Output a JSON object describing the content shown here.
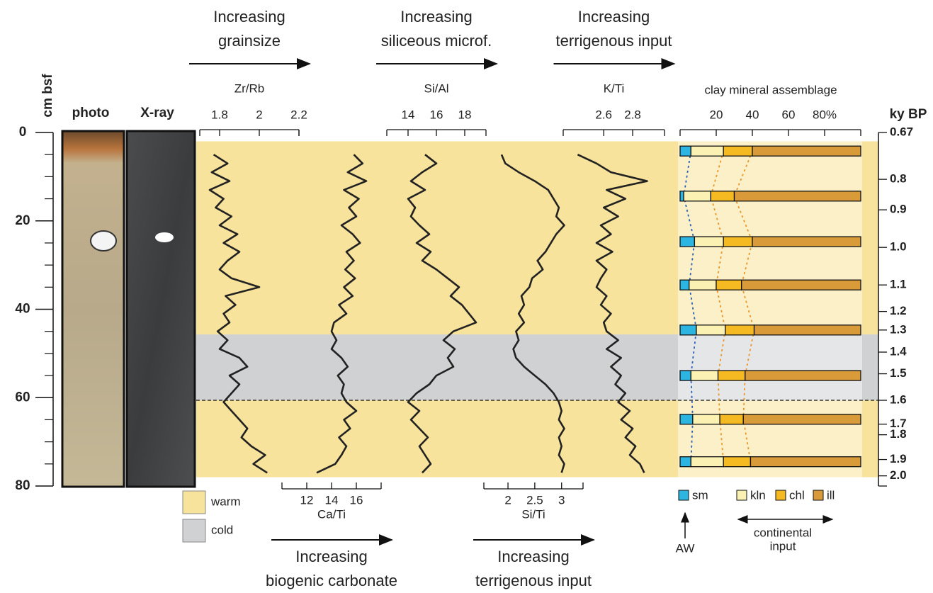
{
  "chart_data": {
    "type": "profile",
    "depth_axis": {
      "label": "cm bsf",
      "ylim": [
        0,
        80
      ],
      "yticks": [
        0,
        20,
        40,
        60,
        80
      ],
      "minor_yticks": [
        5,
        10,
        15,
        25,
        30,
        35,
        45,
        50,
        55,
        65,
        70,
        75
      ]
    },
    "panels": {
      "photo": "photo",
      "xray": "X-ray"
    },
    "depths": [
      5,
      7,
      9,
      11,
      13,
      15,
      17,
      19,
      21,
      23,
      25,
      27,
      29,
      31,
      33,
      35,
      37,
      39,
      41,
      43,
      45,
      47,
      49,
      51,
      53,
      55,
      57,
      59,
      61,
      63,
      65,
      67,
      69,
      71,
      73,
      75,
      77
    ],
    "line_color": "#222222",
    "profiles": [
      {
        "name": "Zr/Rb",
        "axis": "top",
        "xlim": [
          1.7,
          2.2
        ],
        "xticks": [
          1.8,
          2,
          2.2
        ],
        "annotation": [
          "Increasing",
          "grainsize"
        ],
        "values": [
          1.77,
          1.84,
          1.76,
          1.85,
          1.75,
          1.82,
          1.78,
          1.86,
          1.8,
          1.89,
          1.82,
          1.9,
          1.84,
          1.8,
          1.86,
          2.0,
          1.83,
          1.88,
          1.82,
          1.85,
          1.79,
          1.84,
          1.8,
          1.9,
          1.94,
          1.85,
          1.9,
          1.86,
          1.82,
          1.86,
          1.9,
          1.94,
          1.91,
          1.96,
          2.03,
          1.97,
          2.04
        ]
      },
      {
        "name": "Ca/Ti",
        "axis": "bottom",
        "xlim": [
          10,
          18
        ],
        "xticks": [
          12,
          14,
          16
        ],
        "annotation": [
          "Increasing",
          "biogenic carbonate"
        ],
        "values": [
          15.8,
          16.5,
          15.3,
          16.8,
          15.0,
          16.2,
          15.4,
          16.0,
          14.8,
          15.7,
          16.3,
          15.2,
          15.8,
          15.1,
          15.9,
          15.0,
          15.7,
          14.6,
          15.2,
          14.2,
          14.0,
          14.4,
          14.0,
          14.8,
          15.3,
          14.5,
          15.0,
          14.8,
          15.2,
          16.0,
          15.0,
          15.5,
          14.6,
          15.2,
          14.8,
          14.3,
          12.8
        ]
      },
      {
        "name": "Si/Al",
        "axis": "top",
        "xlim": [
          12.5,
          19.5
        ],
        "xticks": [
          14,
          16,
          18
        ],
        "annotation": [
          "Increasing",
          "siliceous microf."
        ],
        "values": [
          15.2,
          16.0,
          15.0,
          14.2,
          15.2,
          14.0,
          14.5,
          14.2,
          14.8,
          15.5,
          14.6,
          15.6,
          15.0,
          16.0,
          16.8,
          17.6,
          17.0,
          17.8,
          18.3,
          18.8,
          17.2,
          16.5,
          17.3,
          16.8,
          17.2,
          16.0,
          15.5,
          14.6,
          14.0,
          14.8,
          14.2,
          14.8,
          15.4,
          14.8,
          15.2,
          15.6,
          15.0
        ]
      },
      {
        "name": "Si/Ti",
        "axis": "bottom",
        "xlim": [
          1.55,
          3.4
        ],
        "xticks": [
          2,
          2.5,
          3
        ],
        "annotation": [
          "Increasing",
          "terrigenous input"
        ],
        "values": [
          1.88,
          1.95,
          2.2,
          2.5,
          2.75,
          2.85,
          2.95,
          2.9,
          3.05,
          2.9,
          2.8,
          2.7,
          2.55,
          2.65,
          2.45,
          2.4,
          2.25,
          2.3,
          2.2,
          2.3,
          2.15,
          2.2,
          2.1,
          2.15,
          2.3,
          2.5,
          2.7,
          2.85,
          2.95,
          3.0,
          2.95,
          3.05,
          2.95,
          3.0,
          2.95,
          3.05,
          3.0
        ]
      },
      {
        "name": "K/Ti",
        "axis": "top",
        "xlim": [
          2.32,
          3.02
        ],
        "xticks": [
          2.6,
          2.8
        ],
        "annotation": [
          "Increasing",
          "terrigenous input"
        ],
        "values": [
          2.42,
          2.55,
          2.65,
          2.9,
          2.62,
          2.75,
          2.6,
          2.7,
          2.58,
          2.65,
          2.55,
          2.66,
          2.55,
          2.62,
          2.58,
          2.55,
          2.62,
          2.58,
          2.65,
          2.6,
          2.62,
          2.7,
          2.62,
          2.72,
          2.65,
          2.72,
          2.68,
          2.75,
          2.7,
          2.78,
          2.72,
          2.8,
          2.75,
          2.82,
          2.78,
          2.85,
          2.88
        ]
      }
    ],
    "zones": [
      {
        "label": "warm",
        "color": "#f8e39c"
      },
      {
        "label": "cold",
        "color": "#cfd1d3"
      }
    ],
    "intervals": [
      {
        "zone": 0,
        "top": 2,
        "bottom": 45.7
      },
      {
        "zone": 1,
        "top": 45.7,
        "bottom": 60.6
      },
      {
        "zone": 0,
        "top": 60.6,
        "bottom": 78
      }
    ],
    "boundary_depth": 60.6,
    "clay": {
      "title": "clay mineral assemblage",
      "xlim": [
        0,
        100
      ],
      "xticks": [
        20,
        40,
        60,
        {
          "value": 80,
          "label": "80%"
        }
      ],
      "minerals": [
        {
          "name": "sm",
          "color": "#2bb5e0"
        },
        {
          "name": "kln",
          "color": "#fbf1b2"
        },
        {
          "name": "chl",
          "color": "#f5b921"
        },
        {
          "name": "ill",
          "color": "#d99a3a"
        }
      ],
      "samples": [
        {
          "depth": 4.2,
          "values": [
            6,
            18,
            16,
            60
          ]
        },
        {
          "depth": 14.4,
          "values": [
            2,
            15,
            13,
            70
          ]
        },
        {
          "depth": 24.7,
          "values": [
            8,
            16,
            16,
            60
          ]
        },
        {
          "depth": 34.5,
          "values": [
            5,
            15,
            14,
            66
          ]
        },
        {
          "depth": 44.7,
          "values": [
            9,
            16,
            16,
            59
          ]
        },
        {
          "depth": 55,
          "values": [
            6,
            15,
            15,
            64
          ]
        },
        {
          "depth": 64.9,
          "values": [
            7,
            15,
            13,
            65
          ]
        },
        {
          "depth": 74.5,
          "values": [
            6,
            18,
            15,
            61
          ]
        }
      ],
      "aw_label": "AW",
      "continental_label": [
        "continental",
        "input"
      ]
    },
    "age_axis": {
      "label": "ky BP",
      "ages": [
        0.67,
        0.8,
        0.9,
        1.0,
        1.1,
        1.2,
        1.3,
        1.4,
        1.5,
        1.6,
        1.7,
        1.8,
        1.9,
        2.0
      ],
      "age_labels": [
        "0.67",
        "0.8",
        "0.9",
        "1.0",
        "1.1",
        "1.2",
        "1.3",
        "1.4",
        "1.5",
        "1.6",
        "1.7",
        "1.8",
        "1.9",
        "2.0"
      ],
      "depths": [
        0,
        10.6,
        17.5,
        26,
        34.5,
        40.5,
        44.7,
        49.7,
        54.6,
        60.6,
        66,
        68.4,
        74,
        77.7
      ]
    }
  }
}
